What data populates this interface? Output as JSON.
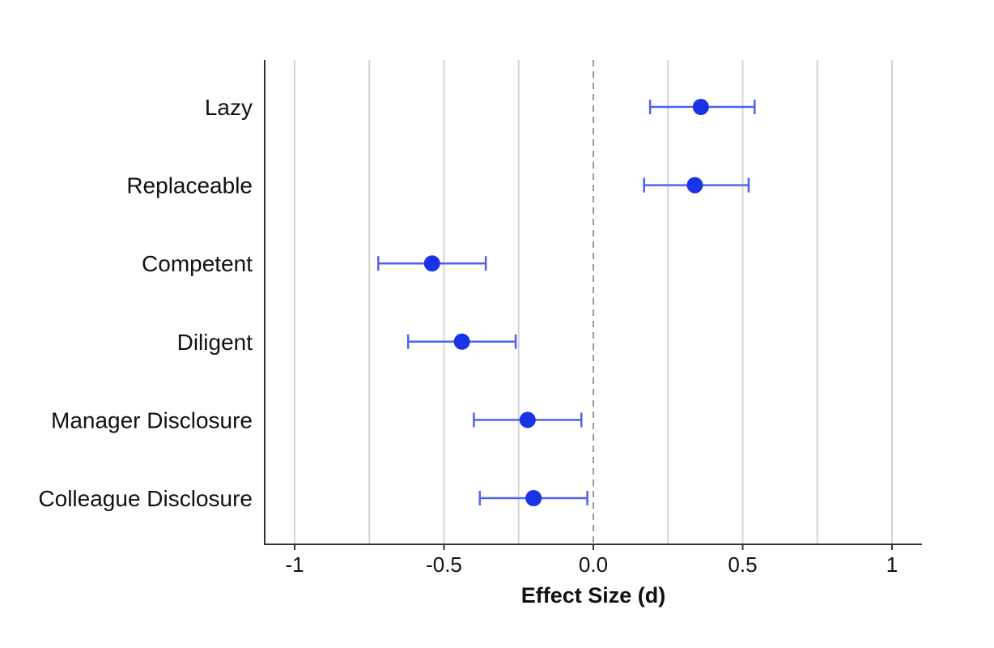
{
  "chart_data": {
    "type": "scatter",
    "title": "",
    "xlabel": "Effect Size (d)",
    "ylabel": "",
    "xlim": [
      -1.1,
      1.1
    ],
    "x_ticks": [
      -1,
      -0.5,
      0.0,
      0.5,
      1
    ],
    "x_tick_labels": [
      "-1",
      "-0.5",
      "0.0",
      "0.5",
      "1"
    ],
    "gridlines_x": [
      -1,
      -0.75,
      -0.5,
      -0.25,
      0.25,
      0.5,
      0.75,
      1
    ],
    "reference_line": {
      "x": 0,
      "style": "dashed"
    },
    "grid": true,
    "point_color": "#1a33e6",
    "error_bar_color": "#4d63f0",
    "categories": [
      "Lazy",
      "Replaceable",
      "Competent",
      "Diligent",
      "Manager Disclosure",
      "Colleague Disclosure"
    ],
    "series": [
      {
        "values": [
          0.36,
          0.34,
          -0.54,
          -0.44,
          -0.22,
          -0.2
        ],
        "ci_low": [
          0.19,
          0.17,
          -0.72,
          -0.62,
          -0.4,
          -0.38
        ],
        "ci_high": [
          0.54,
          0.52,
          -0.36,
          -0.26,
          -0.04,
          -0.02
        ]
      }
    ]
  }
}
